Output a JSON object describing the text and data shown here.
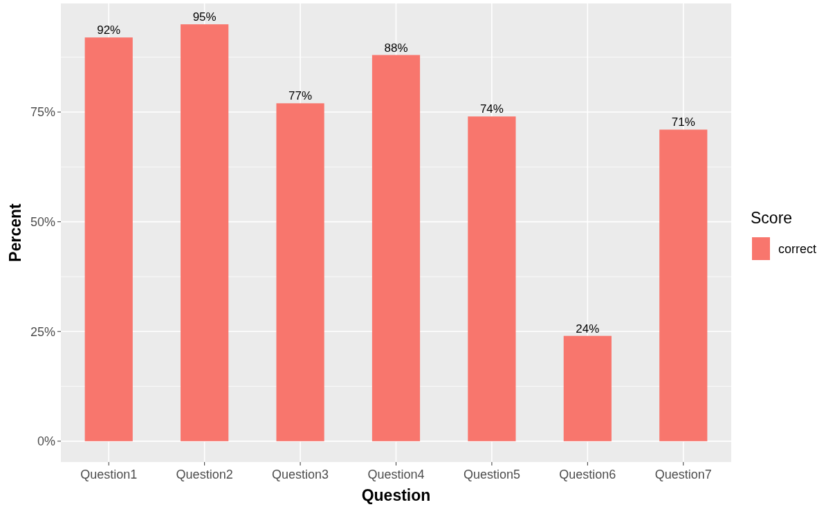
{
  "chart_data": {
    "type": "bar",
    "xlabel": "Question",
    "ylabel": "Percent",
    "legend_title": "Score",
    "categories": [
      "Question1",
      "Question2",
      "Question3",
      "Question4",
      "Question5",
      "Question6",
      "Question7"
    ],
    "series": [
      {
        "name": "correct",
        "color": "#f8766d",
        "values": [
          92,
          95,
          77,
          88,
          74,
          24,
          71
        ],
        "value_labels": [
          "92%",
          "95%",
          "77%",
          "88%",
          "74%",
          "24%",
          "71%"
        ]
      }
    ],
    "ylim": [
      -4.75,
      99.75
    ],
    "yticks": [
      {
        "value": 0,
        "label": "0%"
      },
      {
        "value": 25,
        "label": "25%"
      },
      {
        "value": 50,
        "label": "50%"
      },
      {
        "value": 75,
        "label": "75%"
      }
    ],
    "grid": true,
    "legend": "right"
  }
}
